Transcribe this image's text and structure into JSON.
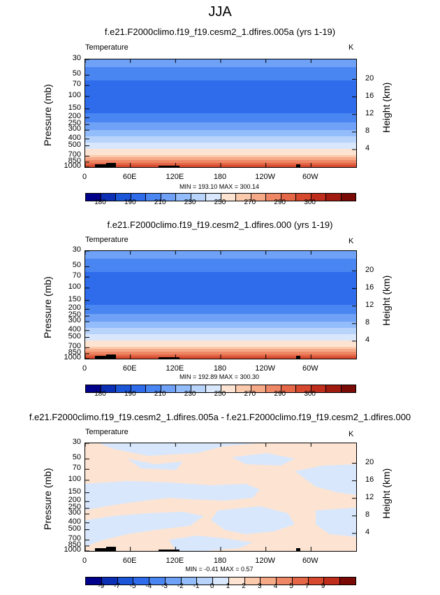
{
  "figure": {
    "title": "JJA"
  },
  "panels": [
    {
      "title": "f.e21.F2000climo.f19_f19.cesm2_1.dfires.005a (yrs 1-19)",
      "variable": "Temperature",
      "units": "K",
      "ylabel": "Pressure (mb)",
      "ylabel_right": "Height (km)",
      "minmax": "MIN = 193.10   MAX = 300.14"
    },
    {
      "title": "f.e21.F2000climo.f19_f19.cesm2_1.dfires.000 (yrs 1-19)",
      "variable": "Temperature",
      "units": "K",
      "ylabel": "Pressure (mb)",
      "ylabel_right": "Height (km)",
      "minmax": "MIN = 192.89   MAX = 300.30"
    },
    {
      "title": "f.e21.F2000climo.f19_f19.cesm2_1.dfires.005a - f.e21.F2000climo.f19_f19.cesm2_1.dfires.000",
      "variable": "Temperature",
      "units": "K",
      "ylabel": "Pressure (mb)",
      "ylabel_right": "Height (km)",
      "minmax": "MIN = -0.41   MAX = 0.57"
    }
  ],
  "chart_data": [
    {
      "type": "heatmap",
      "title": "f.e21.F2000climo.f19_f19.cesm2_1.dfires.005a (yrs 1-19)",
      "x_ticks": [
        "0",
        "60E",
        "120E",
        "180",
        "120W",
        "60W"
      ],
      "x_tick_lon": [
        0,
        60,
        120,
        180,
        240,
        300
      ],
      "xlim": [
        0,
        360
      ],
      "y_ticks": [
        "30",
        "50",
        "70",
        "100",
        "150",
        "200",
        "250",
        "300",
        "400",
        "500",
        "700",
        "850",
        "1000"
      ],
      "y_tick_p": [
        30,
        50,
        70,
        100,
        150,
        200,
        250,
        300,
        400,
        500,
        700,
        850,
        1000
      ],
      "ylim": [
        30,
        1000
      ],
      "y2_ticks": [
        "20",
        "16",
        "12",
        "8",
        "4"
      ],
      "y2_tick_km": [
        20,
        16,
        12,
        8,
        4
      ],
      "approx_levels": [
        {
          "p": 30,
          "value": 225
        },
        {
          "p": 50,
          "value": 215
        },
        {
          "p": 70,
          "value": 205
        },
        {
          "p": 100,
          "value": 200
        },
        {
          "p": 150,
          "value": 205
        },
        {
          "p": 200,
          "value": 215
        },
        {
          "p": 250,
          "value": 222
        },
        {
          "p": 300,
          "value": 230
        },
        {
          "p": 400,
          "value": 245
        },
        {
          "p": 500,
          "value": 255
        },
        {
          "p": 700,
          "value": 272
        },
        {
          "p": 850,
          "value": 284
        },
        {
          "p": 1000,
          "value": 295
        }
      ],
      "colorbar_labels": [
        "180",
        "190",
        "210",
        "230",
        "250",
        "270",
        "290",
        "300"
      ],
      "colorbar_colors": [
        "#00008b",
        "#0b2fb5",
        "#1b55d8",
        "#2e6cec",
        "#4a86f2",
        "#6fa1f6",
        "#93bcfa",
        "#b9d4fb",
        "#d8e7fc",
        "#fde4d2",
        "#fbc9ab",
        "#f6a987",
        "#ee8765",
        "#e46747",
        "#d6492f",
        "#bf2e1c",
        "#a01a0f",
        "#7a0a05"
      ]
    },
    {
      "type": "heatmap",
      "title": "f.e21.F2000climo.f19_f19.cesm2_1.dfires.000 (yrs 1-19)",
      "x_ticks": [
        "0",
        "60E",
        "120E",
        "180",
        "120W",
        "60W"
      ],
      "x_tick_lon": [
        0,
        60,
        120,
        180,
        240,
        300
      ],
      "xlim": [
        0,
        360
      ],
      "y_ticks": [
        "30",
        "50",
        "70",
        "100",
        "150",
        "200",
        "250",
        "300",
        "400",
        "500",
        "700",
        "850",
        "1000"
      ],
      "y_tick_p": [
        30,
        50,
        70,
        100,
        150,
        200,
        250,
        300,
        400,
        500,
        700,
        850,
        1000
      ],
      "ylim": [
        30,
        1000
      ],
      "y2_ticks": [
        "20",
        "16",
        "12",
        "8",
        "4"
      ],
      "y2_tick_km": [
        20,
        16,
        12,
        8,
        4
      ],
      "approx_levels": [
        {
          "p": 30,
          "value": 225
        },
        {
          "p": 50,
          "value": 215
        },
        {
          "p": 70,
          "value": 205
        },
        {
          "p": 100,
          "value": 200
        },
        {
          "p": 150,
          "value": 205
        },
        {
          "p": 200,
          "value": 215
        },
        {
          "p": 250,
          "value": 222
        },
        {
          "p": 300,
          "value": 230
        },
        {
          "p": 400,
          "value": 245
        },
        {
          "p": 500,
          "value": 255
        },
        {
          "p": 700,
          "value": 272
        },
        {
          "p": 850,
          "value": 284
        },
        {
          "p": 1000,
          "value": 295
        }
      ],
      "colorbar_labels": [
        "180",
        "190",
        "210",
        "230",
        "250",
        "270",
        "290",
        "300"
      ],
      "colorbar_colors": [
        "#00008b",
        "#0b2fb5",
        "#1b55d8",
        "#2e6cec",
        "#4a86f2",
        "#6fa1f6",
        "#93bcfa",
        "#b9d4fb",
        "#d8e7fc",
        "#fde4d2",
        "#fbc9ab",
        "#f6a987",
        "#ee8765",
        "#e46747",
        "#d6492f",
        "#bf2e1c",
        "#a01a0f",
        "#7a0a05"
      ]
    },
    {
      "type": "heatmap",
      "title": "f.e21.F2000climo.f19_f19.cesm2_1.dfires.005a - f.e21.F2000climo.f19_f19.cesm2_1.dfires.000",
      "x_ticks": [
        "0",
        "60E",
        "120E",
        "180",
        "120W",
        "60W"
      ],
      "x_tick_lon": [
        0,
        60,
        120,
        180,
        240,
        300
      ],
      "xlim": [
        0,
        360
      ],
      "y_ticks": [
        "30",
        "50",
        "70",
        "100",
        "150",
        "200",
        "250",
        "300",
        "400",
        "500",
        "700",
        "850",
        "1000"
      ],
      "y_tick_p": [
        30,
        50,
        70,
        100,
        150,
        200,
        250,
        300,
        400,
        500,
        700,
        850,
        1000
      ],
      "ylim": [
        30,
        1000
      ],
      "y2_ticks": [
        "20",
        "16",
        "12",
        "8",
        "4"
      ],
      "y2_tick_km": [
        20,
        16,
        12,
        8,
        4
      ],
      "field_description_values": {
        "positive_small": "0 to 1",
        "negative_small": "-1 to 0"
      },
      "colorbar_labels": [
        "-9",
        "-7",
        "-5",
        "-4",
        "-3",
        "-2",
        "-1",
        "0",
        "1",
        "2",
        "3",
        "4",
        "5",
        "7",
        "9"
      ],
      "colorbar_colors": [
        "#00008b",
        "#0b2fb5",
        "#1b55d8",
        "#2e6cec",
        "#4a86f2",
        "#6fa1f6",
        "#93bcfa",
        "#b9d4fb",
        "#d8e7fc",
        "#fde4d2",
        "#fbc9ab",
        "#f6a987",
        "#ee8765",
        "#e46747",
        "#d6492f",
        "#bf2e1c",
        "#7a0a05"
      ]
    }
  ]
}
